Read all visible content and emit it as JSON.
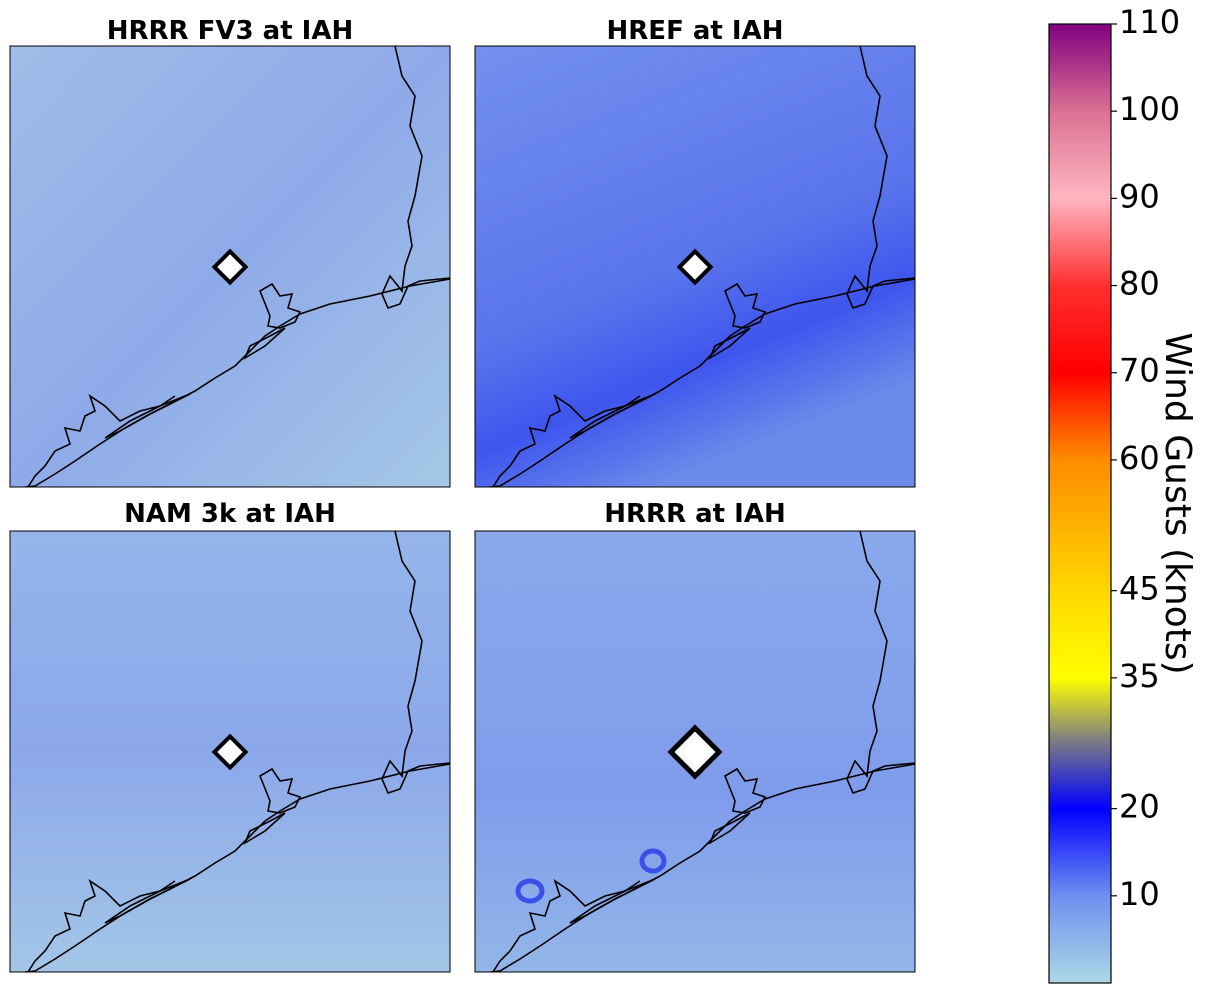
{
  "panels": [
    {
      "title": "HRRR FV3 at IAH"
    },
    {
      "title": "HREF at IAH"
    },
    {
      "title": "NAM 3k at IAH"
    },
    {
      "title": "HRRR at IAH"
    }
  ],
  "colorbar": {
    "label": "Wind Gusts (knots)",
    "lim": [
      0,
      110
    ],
    "ticks": [
      10,
      20,
      35,
      45,
      60,
      70,
      80,
      90,
      100,
      110
    ],
    "stops": [
      {
        "value": 0,
        "color": "#add8e6"
      },
      {
        "value": 10,
        "color": "#6f8ff0"
      },
      {
        "value": 20,
        "color": "#0000ff"
      },
      {
        "value": 28,
        "color": "#808080"
      },
      {
        "value": 35,
        "color": "#ffff00"
      },
      {
        "value": 45,
        "color": "#ffd700"
      },
      {
        "value": 60,
        "color": "#ff8c00"
      },
      {
        "value": 70,
        "color": "#ff0000"
      },
      {
        "value": 80,
        "color": "#ff3030"
      },
      {
        "value": 90,
        "color": "#ffb6c1"
      },
      {
        "value": 100,
        "color": "#db7093"
      },
      {
        "value": 110,
        "color": "#800080"
      }
    ]
  }
}
